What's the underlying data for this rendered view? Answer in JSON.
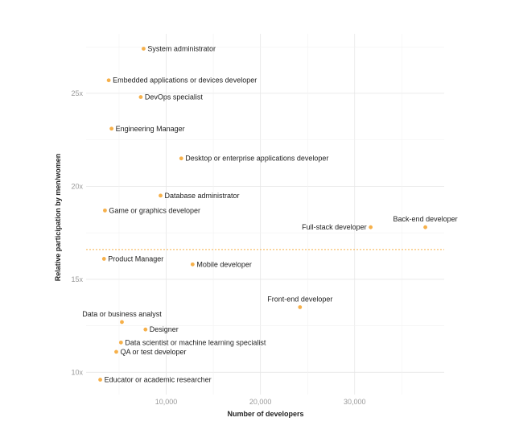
{
  "chart_data": {
    "type": "scatter",
    "xlabel": "Number of developers",
    "ylabel": "Relative participation by men/women",
    "xlim": [
      1500,
      39500
    ],
    "ylim": [
      8.8,
      28.2
    ],
    "xticks": [
      10000,
      20000,
      30000
    ],
    "xtick_labels": [
      "10,000",
      "20,000",
      "30,000"
    ],
    "yticks": [
      10,
      15,
      20,
      25
    ],
    "ytick_labels": [
      "10x",
      "15x",
      "20x",
      "25x"
    ],
    "grid": true,
    "point_color": "#f6b04a",
    "reference_line": {
      "y": 16.6,
      "style": "dotted",
      "color": "#f6b04a"
    },
    "points": [
      {
        "label": "System administrator",
        "x": 7600,
        "y": 27.4,
        "label_side": "right"
      },
      {
        "label": "Embedded applications or devices developer",
        "x": 3900,
        "y": 25.7,
        "label_side": "right"
      },
      {
        "label": "DevOps specialist",
        "x": 7300,
        "y": 24.8,
        "label_side": "right"
      },
      {
        "label": "Engineering Manager",
        "x": 4200,
        "y": 23.1,
        "label_side": "right"
      },
      {
        "label": "Desktop or enterprise applications developer",
        "x": 11600,
        "y": 21.5,
        "label_side": "right"
      },
      {
        "label": "Database administrator",
        "x": 9400,
        "y": 19.5,
        "label_side": "right"
      },
      {
        "label": "Game or graphics developer",
        "x": 3500,
        "y": 18.7,
        "label_side": "right"
      },
      {
        "label": "Back-end developer",
        "x": 37500,
        "y": 17.8,
        "label_side": "above"
      },
      {
        "label": "Full-stack developer",
        "x": 31700,
        "y": 17.8,
        "label_side": "left"
      },
      {
        "label": "Product Manager",
        "x": 3400,
        "y": 16.1,
        "label_side": "right"
      },
      {
        "label": "Mobile developer",
        "x": 12800,
        "y": 15.8,
        "label_side": "right"
      },
      {
        "label": "Front-end developer",
        "x": 24200,
        "y": 13.5,
        "label_side": "above"
      },
      {
        "label": "Data or business analyst",
        "x": 5300,
        "y": 12.7,
        "label_side": "above"
      },
      {
        "label": "Designer",
        "x": 7800,
        "y": 12.3,
        "label_side": "right"
      },
      {
        "label": "Data scientist or machine learning specialist",
        "x": 5200,
        "y": 11.6,
        "label_side": "right"
      },
      {
        "label": "QA or test developer",
        "x": 4700,
        "y": 11.1,
        "label_side": "right"
      },
      {
        "label": "Educator or academic researcher",
        "x": 3000,
        "y": 9.6,
        "label_side": "right"
      }
    ]
  }
}
